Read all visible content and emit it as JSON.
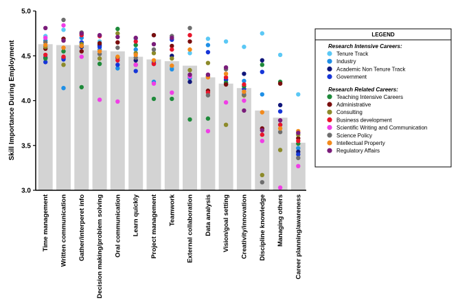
{
  "chart_data": {
    "type": "bar",
    "title": "",
    "xlabel": "",
    "ylabel": "Skill Importance During Employment",
    "ylim": [
      3.0,
      5.0
    ],
    "yticks": [
      "3.0",
      "3.5",
      "4.0",
      "4.5",
      "5.0"
    ],
    "grid": false,
    "legend_position": "right",
    "categories": [
      "Time management",
      "Written communication",
      "Gather/interperet info",
      "Decision making/problem solving",
      "Oral communication",
      "Learn quickly",
      "Project management",
      "Teamwork",
      "External collaboration",
      "Data analysis",
      "Vision/goal setting",
      "Creativity/innovation",
      "Discipline knowledge",
      "Managing others",
      "Career planning/awareness"
    ],
    "values": [
      4.63,
      4.62,
      4.62,
      4.56,
      4.55,
      4.49,
      4.46,
      4.44,
      4.39,
      4.26,
      4.19,
      4.14,
      3.89,
      3.81,
      3.53
    ],
    "legend": {
      "title": "LEGEND",
      "groups": [
        {
          "heading": "Research Intensive Careers:",
          "items": [
            {
              "label": "Tenure Track",
              "color": "#5bc8f5"
            },
            {
              "label": "Industry",
              "color": "#1f8fe6"
            },
            {
              "label": "Academic Non Tenure Track",
              "color": "#10167a"
            },
            {
              "label": "Government",
              "color": "#1636d8"
            }
          ]
        },
        {
          "heading": "Research Related Careers:",
          "items": [
            {
              "label": "Teaching Intensive Careers",
              "color": "#1e8a3a"
            },
            {
              "label": "Administrative",
              "color": "#7a0e0e"
            },
            {
              "label": "Consulting",
              "color": "#8c8a2a"
            },
            {
              "label": "Business development",
              "color": "#e8162c"
            },
            {
              "label": "Scientific Writing and Communication",
              "color": "#f03ee6"
            },
            {
              "label": "Science Policy",
              "color": "#6e6e6e"
            },
            {
              "label": "Intellectual Property",
              "color": "#f28a1c"
            },
            {
              "label": "Regulatory Affairs",
              "color": "#7a1c7a"
            }
          ]
        }
      ]
    },
    "series": [
      {
        "name": "Tenure Track",
        "values": [
          4.72,
          4.79,
          4.74,
          4.66,
          4.48,
          4.69,
          4.73,
          4.37,
          4.53,
          4.69,
          4.66,
          4.6,
          4.75,
          4.51,
          4.07
        ]
      },
      {
        "name": "Industry",
        "values": [
          4.67,
          4.14,
          4.7,
          4.57,
          4.36,
          4.57,
          4.21,
          4.35,
          4.25,
          4.62,
          4.24,
          4.22,
          4.07,
          3.73,
          3.47
        ]
      },
      {
        "name": "Academic Non Tenure Track",
        "values": [
          4.48,
          4.48,
          4.6,
          4.62,
          4.48,
          4.45,
          4.41,
          4.5,
          4.21,
          4.27,
          4.2,
          4.3,
          4.45,
          3.95,
          3.43
        ]
      },
      {
        "name": "Government",
        "values": [
          4.43,
          4.46,
          4.65,
          4.6,
          4.4,
          4.33,
          4.43,
          4.68,
          4.27,
          4.54,
          4.23,
          4.13,
          4.32,
          3.88,
          3.4
        ]
      },
      {
        "name": "Teaching Intensive Careers",
        "values": [
          4.47,
          4.55,
          4.15,
          4.41,
          4.8,
          4.62,
          4.02,
          4.02,
          3.79,
          3.8,
          4.2,
          4.16,
          4.4,
          4.21,
          3.52
        ]
      },
      {
        "name": "Administrative",
        "values": [
          4.58,
          4.69,
          4.55,
          4.64,
          4.65,
          4.4,
          4.73,
          4.61,
          4.66,
          4.11,
          4.18,
          4.06,
          3.69,
          4.19,
          3.58
        ]
      },
      {
        "name": "Consulting",
        "values": [
          4.6,
          4.4,
          4.63,
          4.47,
          4.75,
          4.53,
          4.53,
          4.47,
          4.34,
          4.42,
          3.73,
          4.06,
          3.17,
          3.45,
          3.62
        ]
      },
      {
        "name": "Business development",
        "values": [
          4.51,
          4.49,
          4.73,
          4.72,
          4.45,
          4.66,
          4.41,
          4.57,
          4.73,
          4.09,
          4.26,
          4.18,
          3.62,
          3.73,
          3.55
        ]
      },
      {
        "name": "Scientific Writing and Communication",
        "values": [
          4.7,
          4.84,
          4.49,
          4.01,
          3.99,
          4.4,
          4.19,
          4.09,
          4.27,
          3.66,
          3.98,
          4.0,
          3.55,
          3.03,
          3.27
        ]
      },
      {
        "name": "Science Policy",
        "values": [
          4.65,
          4.9,
          4.76,
          4.52,
          4.59,
          4.48,
          4.57,
          4.72,
          4.81,
          4.06,
          4.35,
          4.07,
          3.09,
          3.65,
          3.36
        ]
      },
      {
        "name": "Intellectual Property",
        "values": [
          4.62,
          4.59,
          4.61,
          4.55,
          4.49,
          4.51,
          4.45,
          4.39,
          4.57,
          4.26,
          4.3,
          4.1,
          3.87,
          3.69,
          3.66
        ]
      },
      {
        "name": "Regulatory Affairs",
        "values": [
          4.81,
          4.67,
          4.75,
          4.73,
          4.71,
          4.7,
          4.63,
          4.7,
          4.29,
          4.29,
          4.37,
          3.89,
          3.67,
          3.78,
          3.64
        ]
      }
    ]
  }
}
